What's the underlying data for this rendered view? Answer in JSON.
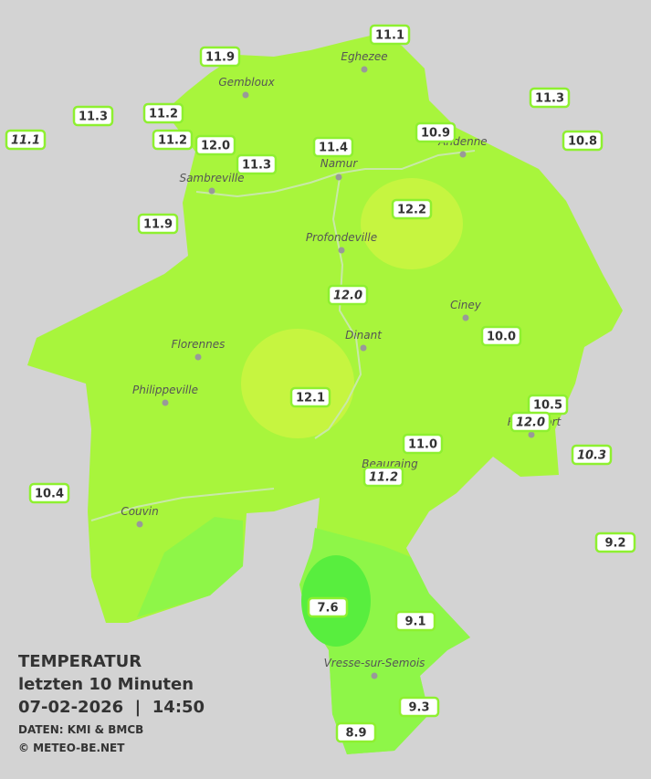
{
  "stations": [
    {
      "value": "11.1",
      "italic": false
    },
    {
      "value": "11.9",
      "italic": false
    },
    {
      "value": "11.3",
      "italic": false
    },
    {
      "value": "11.3",
      "italic": false
    },
    {
      "value": "11.2",
      "italic": false
    },
    {
      "value": "11.1",
      "italic": true
    },
    {
      "value": "11.2",
      "italic": false
    },
    {
      "value": "12.0",
      "italic": false
    },
    {
      "value": "10.9",
      "italic": false
    },
    {
      "value": "11.4",
      "italic": false
    },
    {
      "value": "10.8",
      "italic": false
    },
    {
      "value": "11.3",
      "italic": false
    },
    {
      "value": "12.2",
      "italic": false
    },
    {
      "value": "11.9",
      "italic": false
    },
    {
      "value": "12.0",
      "italic": true
    },
    {
      "value": "10.0",
      "italic": false
    },
    {
      "value": "12.1",
      "italic": false
    },
    {
      "value": "10.5",
      "italic": false
    },
    {
      "value": "12.0",
      "italic": true
    },
    {
      "value": "10.3",
      "italic": true
    },
    {
      "value": "11.0",
      "italic": false
    },
    {
      "value": "11.2",
      "italic": true
    },
    {
      "value": "10.4",
      "italic": false
    },
    {
      "value": "9.2",
      "italic": false
    },
    {
      "value": "7.6",
      "italic": false
    },
    {
      "value": "9.1",
      "italic": false
    },
    {
      "value": "9.3",
      "italic": false
    },
    {
      "value": "8.9",
      "italic": false
    }
  ],
  "cities": [
    "Eghezee",
    "Gembloux",
    "Andenne",
    "Namur",
    "Sambreville",
    "Profondeville",
    "Ciney",
    "Dinant",
    "Florennes",
    "Philippeville",
    "Rochefort",
    "Beauraing",
    "Couvin",
    "Vresse-sur-Semois"
  ],
  "legend": {
    "title": "TEMPERATUR",
    "subtitle": "letzten 10 Minuten",
    "datetime": "07-02-2026  |  14:50",
    "source": "DATEN: KMI & BMCB",
    "copyright": "© METEO-BE.NET"
  }
}
